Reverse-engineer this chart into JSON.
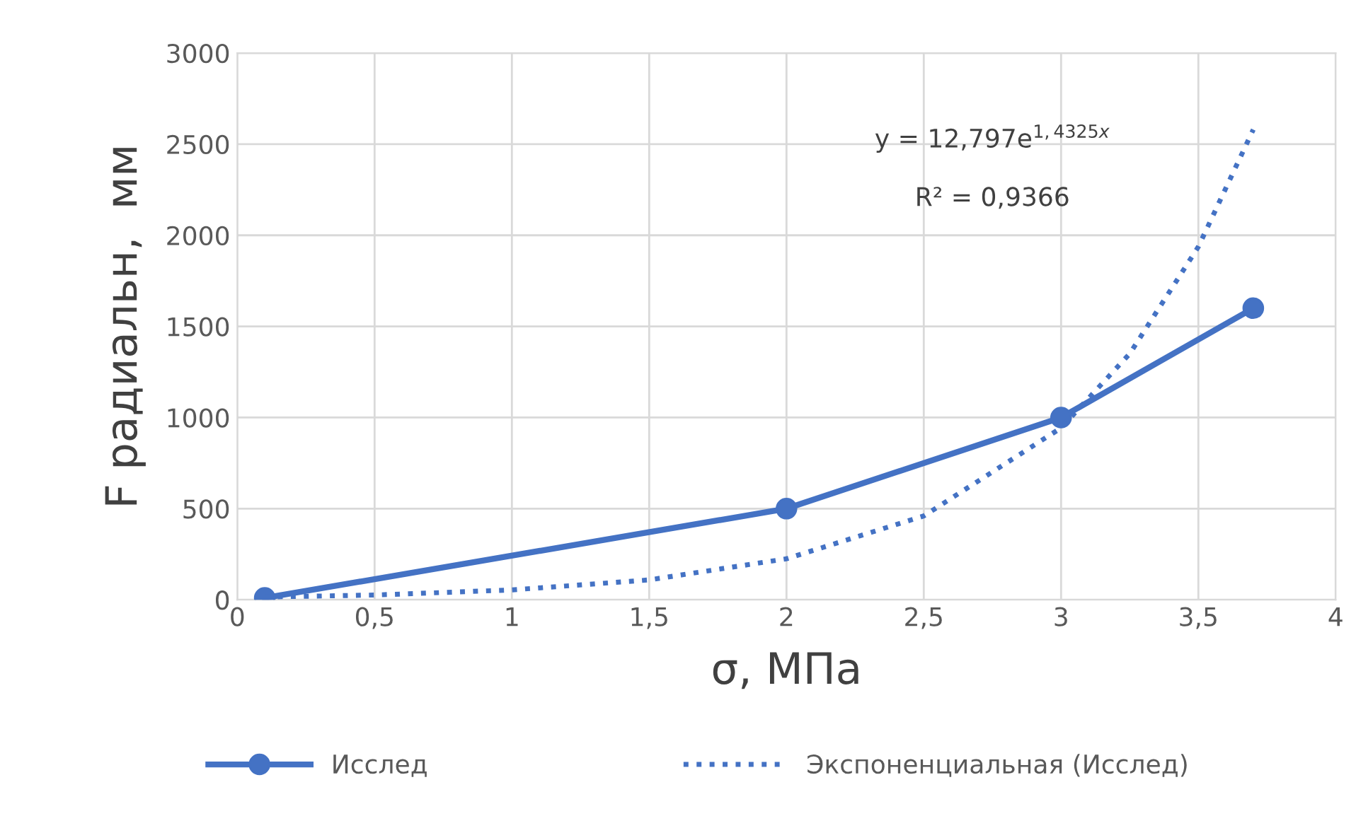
{
  "chart_data": {
    "type": "line",
    "xlabel": "σ, МПа",
    "ylabel": "F радиальн,  мм",
    "xlim": [
      0,
      4
    ],
    "xticks": [
      0,
      {
        "value": 0.5,
        "label": "0,5"
      },
      1,
      {
        "value": 1.5,
        "label": "1,5"
      },
      2,
      {
        "value": 2.5,
        "label": "2,5"
      },
      3,
      {
        "value": 3.5,
        "label": "3,5"
      },
      4
    ],
    "ylim": [
      0,
      3000
    ],
    "yticks": [
      0,
      500,
      1000,
      1500,
      2000,
      2500,
      3000
    ],
    "grid": true,
    "legend": "bottom",
    "annotations": [
      "y = 12,797e$^{1,4325x}$",
      "R² = 0,9366"
    ],
    "series": [
      {
        "name": "Исслед",
        "color": "#4472c4",
        "marker": "circle",
        "line_style": "solid",
        "x": [
          0.1,
          2,
          3,
          3.7
        ],
        "values": [
          10,
          500,
          1000,
          1600
        ]
      },
      {
        "name": "Экспоненциальная (Исслед)",
        "color": "#4472c4",
        "marker": "none",
        "line_style": "dotted",
        "x": [
          0.1,
          0.5,
          1,
          1.5,
          2,
          2.5,
          3,
          3.25,
          3.5,
          3.7
        ],
        "values": [
          15,
          26,
          54,
          109,
          225,
          460,
          943,
          1350,
          1937,
          2580
        ]
      }
    ]
  }
}
